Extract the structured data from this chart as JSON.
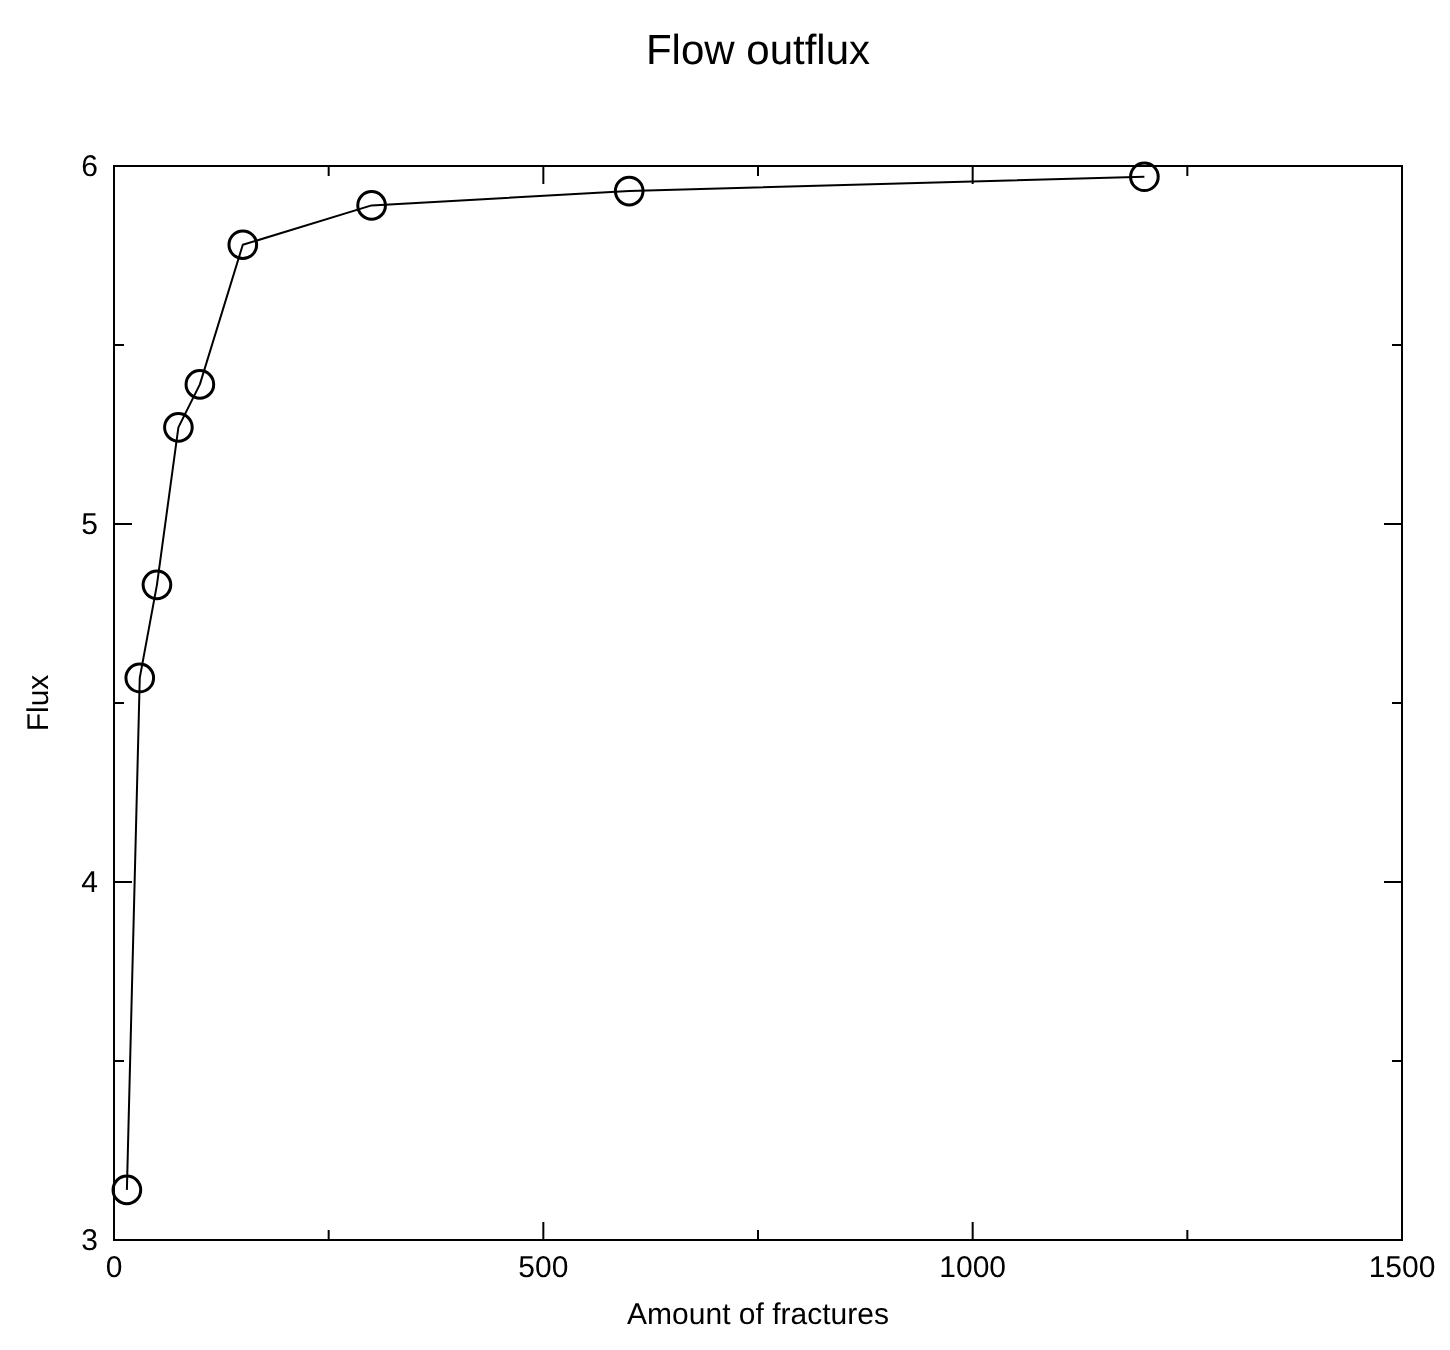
{
  "chart_data": {
    "type": "line",
    "title": "Flow outflux",
    "xlabel": "Amount of fractures",
    "ylabel": "Flux",
    "x": [
      15,
      30,
      50,
      75,
      100,
      150,
      300,
      600,
      1200
    ],
    "series": [
      {
        "color": "#000000",
        "values": [
          3.14,
          4.57,
          4.83,
          5.27,
          5.39,
          5.78,
          5.89,
          5.93,
          5.97
        ]
      }
    ],
    "xlim": [
      0,
      1500
    ],
    "xticks": [
      0,
      {
        "value": 250,
        "label": null
      },
      500,
      {
        "value": 750,
        "label": null
      },
      1000,
      {
        "value": 1250,
        "label": null
      },
      1500
    ],
    "ylim": [
      3,
      6
    ],
    "yticks": [
      3,
      {
        "value": 3.5,
        "label": null
      },
      4,
      {
        "value": 4.5,
        "label": null
      },
      5,
      {
        "value": 5.5,
        "label": null
      },
      6
    ],
    "marker": "circle",
    "line_style": "solid",
    "grid": false
  }
}
